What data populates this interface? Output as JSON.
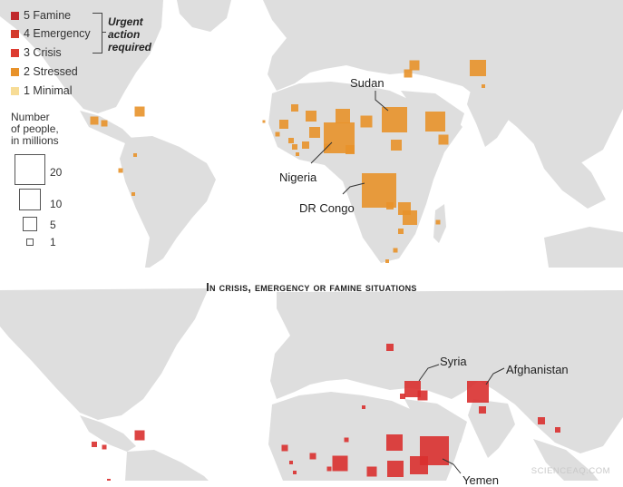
{
  "legend": {
    "phases": [
      {
        "label": "5 Famine",
        "color": "#c0282c"
      },
      {
        "label": "4 Emergency",
        "color": "#d33a2c"
      },
      {
        "label": "3 Crisis",
        "color": "#dd3c31"
      },
      {
        "label": "2 Stressed",
        "color": "#e8922a"
      },
      {
        "label": "1 Minimal",
        "color": "#f7dc96"
      }
    ],
    "bracket_lines": [
      "Urgent",
      "action",
      "required"
    ],
    "size_title_lines": [
      "Number",
      "of people,",
      "in millions"
    ],
    "sizes": [
      {
        "label": "20",
        "value": 20
      },
      {
        "label": "10",
        "value": 10
      },
      {
        "label": "5",
        "value": 5
      },
      {
        "label": "1",
        "value": 1
      }
    ]
  },
  "top_map": {
    "labels": {
      "sudan": "Sudan",
      "nigeria": "Nigeria",
      "drc": "DR Congo"
    }
  },
  "bottom_map": {
    "title": "In crisis, emergency or famine situations",
    "labels": {
      "syria": "Syria",
      "afghanistan": "Afghanistan",
      "yemen": "Yemen"
    }
  },
  "colors": {
    "land": "#dedede",
    "stressed": "#e8922a",
    "crisis": "#d9302f",
    "size_outline": "#555555"
  },
  "watermark": "SCIENCEAQ.COM"
}
